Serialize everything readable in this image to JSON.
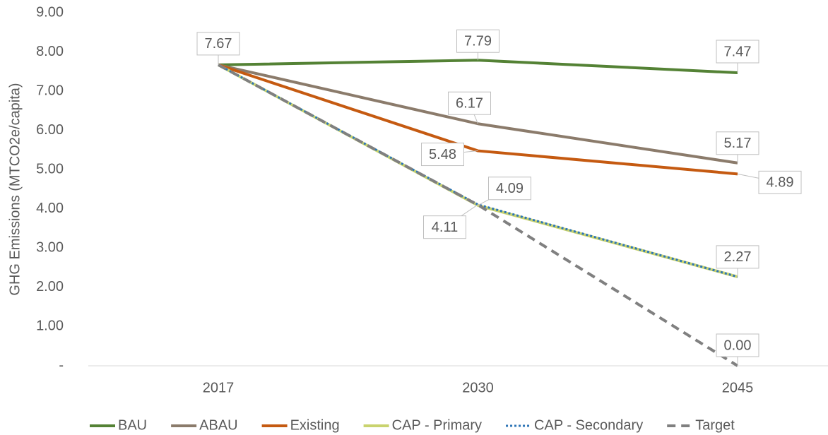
{
  "chart_data": {
    "type": "line",
    "y_label": "GHG Emissions (MTCO2e/capita)",
    "categories": [
      "2017",
      "2030",
      "2045"
    ],
    "ylim": [
      0,
      9
    ],
    "yticks": [
      {
        "value": 0,
        "label": "-"
      },
      {
        "value": 1,
        "label": "1.00"
      },
      {
        "value": 2,
        "label": "2.00"
      },
      {
        "value": 3,
        "label": "3.00"
      },
      {
        "value": 4,
        "label": "4.00"
      },
      {
        "value": 5,
        "label": "5.00"
      },
      {
        "value": 6,
        "label": "6.00"
      },
      {
        "value": 7,
        "label": "7.00"
      },
      {
        "value": 8,
        "label": "8.00"
      },
      {
        "value": 9,
        "label": "9.00"
      }
    ],
    "grid": false,
    "legend": "bottom",
    "series": [
      {
        "name": "BAU",
        "color": "#548235",
        "values": [
          7.67,
          7.79,
          7.47
        ],
        "value_labels": [
          "7.67",
          "7.79",
          "7.47"
        ]
      },
      {
        "name": "ABAU",
        "color": "#8b7b6b",
        "values": [
          7.67,
          6.17,
          5.17
        ],
        "value_labels": [
          null,
          "6.17",
          "5.17"
        ]
      },
      {
        "name": "Existing",
        "color": "#c55a11",
        "values": [
          7.67,
          5.48,
          4.89
        ],
        "value_labels": [
          null,
          "5.48",
          "4.89"
        ]
      },
      {
        "name": "CAP - Primary",
        "color": "#c9d36e",
        "values": [
          7.67,
          4.09,
          2.27
        ],
        "value_labels": [
          null,
          "4.09",
          null
        ]
      },
      {
        "name": "CAP - Secondary",
        "color": "#2e75b6",
        "dash": "dotted",
        "values": [
          7.67,
          4.11,
          2.27
        ],
        "value_labels": [
          null,
          "4.11",
          "2.27"
        ]
      },
      {
        "name": "Target",
        "color": "#808080",
        "dash": "dashed",
        "values": [
          7.67,
          4.1,
          0
        ],
        "value_labels": [
          null,
          null,
          "0.00"
        ]
      }
    ]
  }
}
